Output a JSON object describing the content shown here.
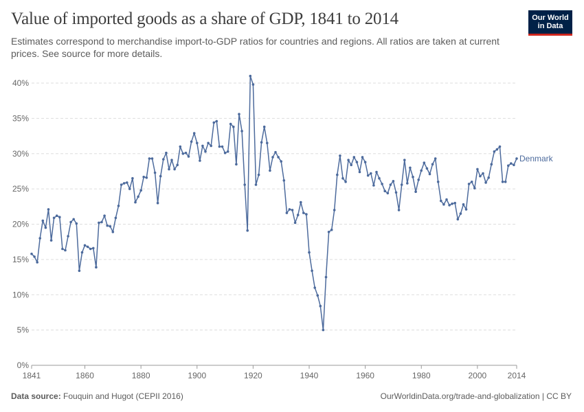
{
  "header": {
    "title": "Value of imported goods as a share of GDP, 1841 to 2014",
    "subtitle": "Estimates correspond to merchandise import-to-GDP ratios for countries and regions. All ratios are taken at current prices. See source for more details.",
    "logo_line1": "Our World",
    "logo_line2": "in Data"
  },
  "footer": {
    "source_label": "Data source:",
    "source_text": "Fouquin and Hugot (CEPII 2016)",
    "right_text": "OurWorldinData.org/trade-and-globalization | CC BY"
  },
  "colors": {
    "series": "#4c6a9c",
    "grid": "#dddddd",
    "logo_bg": "#002147",
    "logo_accent": "#ce261e"
  },
  "chart_data": {
    "type": "line",
    "title": "Value of imported goods as a share of GDP, 1841 to 2014",
    "xlabel": "",
    "ylabel": "",
    "xlim": [
      1841,
      2014
    ],
    "ylim": [
      0,
      40
    ],
    "x_ticks": [
      "1841",
      "1860",
      "1880",
      "1900",
      "1920",
      "1940",
      "1960",
      "1980",
      "2000",
      "2014"
    ],
    "y_ticks": [
      "0%",
      "5%",
      "10%",
      "15%",
      "20%",
      "25%",
      "30%",
      "35%",
      "40%"
    ],
    "grid": "horizontal dashed",
    "legend": "inline label at line end",
    "series": [
      {
        "name": "Denmark",
        "x": [
          1841,
          1842,
          1843,
          1844,
          1845,
          1846,
          1847,
          1848,
          1849,
          1850,
          1851,
          1852,
          1853,
          1854,
          1855,
          1856,
          1857,
          1858,
          1859,
          1860,
          1861,
          1862,
          1863,
          1864,
          1865,
          1866,
          1867,
          1868,
          1869,
          1870,
          1871,
          1872,
          1873,
          1874,
          1875,
          1876,
          1877,
          1878,
          1879,
          1880,
          1881,
          1882,
          1883,
          1884,
          1885,
          1886,
          1887,
          1888,
          1889,
          1890,
          1891,
          1892,
          1893,
          1894,
          1895,
          1896,
          1897,
          1898,
          1899,
          1900,
          1901,
          1902,
          1903,
          1904,
          1905,
          1906,
          1907,
          1908,
          1909,
          1910,
          1911,
          1912,
          1913,
          1914,
          1915,
          1916,
          1917,
          1918,
          1919,
          1920,
          1921,
          1922,
          1923,
          1924,
          1925,
          1926,
          1927,
          1928,
          1929,
          1930,
          1931,
          1932,
          1933,
          1934,
          1935,
          1936,
          1937,
          1938,
          1939,
          1940,
          1941,
          1942,
          1943,
          1944,
          1945,
          1946,
          1947,
          1948,
          1949,
          1950,
          1951,
          1952,
          1953,
          1954,
          1955,
          1956,
          1957,
          1958,
          1959,
          1960,
          1961,
          1962,
          1963,
          1964,
          1965,
          1966,
          1967,
          1968,
          1969,
          1970,
          1971,
          1972,
          1973,
          1974,
          1975,
          1976,
          1977,
          1978,
          1979,
          1980,
          1981,
          1982,
          1983,
          1984,
          1985,
          1986,
          1987,
          1988,
          1989,
          1990,
          1991,
          1992,
          1993,
          1994,
          1995,
          1996,
          1997,
          1998,
          1999,
          2000,
          2001,
          2002,
          2003,
          2004,
          2005,
          2006,
          2007,
          2008,
          2009,
          2010,
          2011,
          2012,
          2013,
          2014
        ],
        "values": [
          15.8,
          15.4,
          14.6,
          18.0,
          20.5,
          19.5,
          22.1,
          17.7,
          20.9,
          21.2,
          21.0,
          16.5,
          16.3,
          18.3,
          20.3,
          20.7,
          20.1,
          13.4,
          16.0,
          17.0,
          16.8,
          16.5,
          16.6,
          13.9,
          20.2,
          20.3,
          21.2,
          19.8,
          19.7,
          18.9,
          20.9,
          22.6,
          25.6,
          25.8,
          25.9,
          25.0,
          26.5,
          23.1,
          23.9,
          24.8,
          26.7,
          26.6,
          29.3,
          29.3,
          27.3,
          23.0,
          26.8,
          29.2,
          30.1,
          27.8,
          29.1,
          27.8,
          28.4,
          31.0,
          30.0,
          30.1,
          29.6,
          31.7,
          32.9,
          31.5,
          29.0,
          31.1,
          30.3,
          31.5,
          31.1,
          34.4,
          34.6,
          31.0,
          31.0,
          30.1,
          30.3,
          34.2,
          33.8,
          28.5,
          35.6,
          33.2,
          25.6,
          19.1,
          41.0,
          39.8,
          25.6,
          27.0,
          31.6,
          33.8,
          31.5,
          27.6,
          29.5,
          30.2,
          29.5,
          28.9,
          26.2,
          21.6,
          22.1,
          22.0,
          20.2,
          21.3,
          23.1,
          21.6,
          21.4,
          16.0,
          13.4,
          11.0,
          9.9,
          8.4,
          5.0,
          12.5,
          18.9,
          19.2,
          22.0,
          27.0,
          29.7,
          26.5,
          26.0,
          29.1,
          28.4,
          29.5,
          28.8,
          27.4,
          29.5,
          28.8,
          26.9,
          27.2,
          25.5,
          27.4,
          26.5,
          25.7,
          24.7,
          24.4,
          25.6,
          26.1,
          24.5,
          22.0,
          25.6,
          29.1,
          25.8,
          28.0,
          26.7,
          24.6,
          26.3,
          27.6,
          28.7,
          27.9,
          27.1,
          28.5,
          29.3,
          26.0,
          23.3,
          22.8,
          23.5,
          22.7,
          22.9,
          23.0,
          20.7,
          21.5,
          22.8,
          22.1,
          25.7,
          26.0,
          25.1,
          27.8,
          26.8,
          27.2,
          25.9,
          26.6,
          28.5,
          30.3,
          30.6,
          31.0,
          26.0,
          26.0,
          28.3,
          28.6,
          28.4,
          29.3
        ]
      }
    ]
  }
}
